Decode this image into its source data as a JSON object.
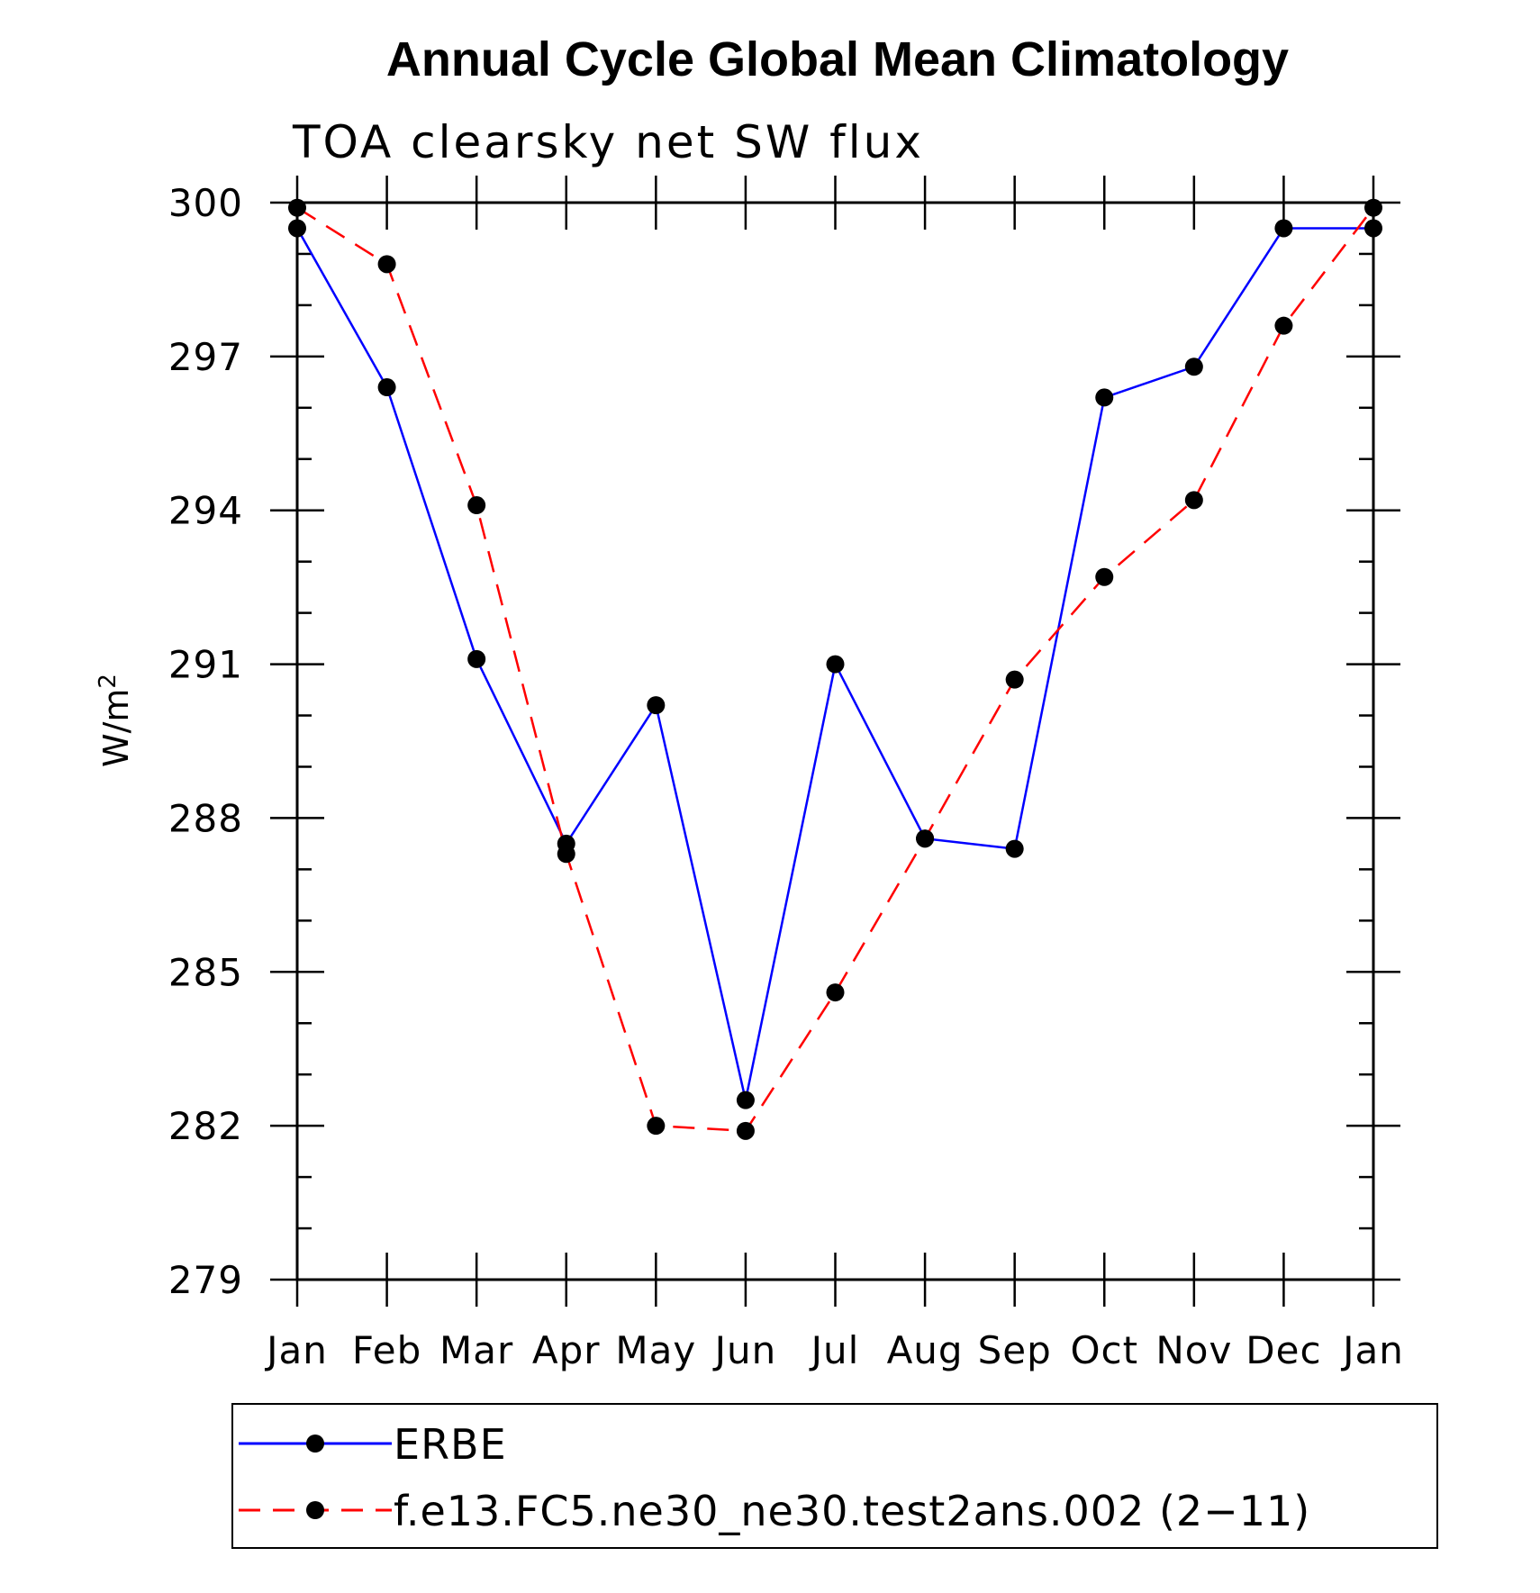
{
  "chart_data": {
    "type": "line",
    "title": "Annual Cycle Global Mean Climatology",
    "subtitle": "TOA clearsky net SW flux",
    "ylabel_main": "W/m",
    "ylabel_sup": "2",
    "categories": [
      "Jan",
      "Feb",
      "Mar",
      "Apr",
      "May",
      "Jun",
      "Jul",
      "Aug",
      "Sep",
      "Oct",
      "Nov",
      "Dec",
      "Jan"
    ],
    "yticks": [
      "279",
      "282",
      "285",
      "288",
      "291",
      "294",
      "297",
      "300"
    ],
    "ylim": [
      279,
      300
    ],
    "series": [
      {
        "name": "ERBE",
        "color": "#0000ff",
        "dash": "solid",
        "values": [
          299.5,
          296.4,
          291.1,
          287.5,
          290.2,
          282.5,
          291.0,
          287.6,
          287.4,
          296.2,
          296.8,
          299.5,
          299.5
        ]
      },
      {
        "name": "f.e13.FC5.ne30_ne30.test2ans.002 (2−11)",
        "color": "#ff0000",
        "dash": "dashed",
        "values": [
          299.9,
          298.8,
          294.1,
          287.3,
          282.0,
          281.9,
          284.6,
          287.6,
          290.7,
          292.7,
          294.2,
          297.6,
          299.9
        ]
      }
    ]
  }
}
